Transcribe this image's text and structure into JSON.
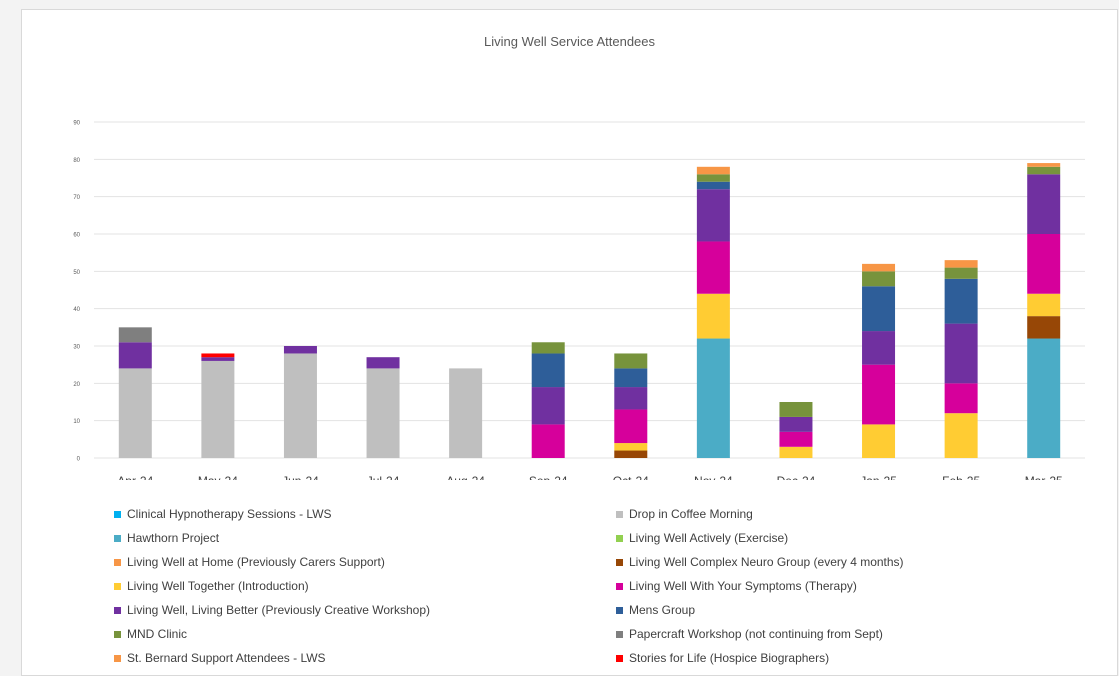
{
  "chart_data": {
    "type": "bar",
    "stacked": true,
    "title": "Living Well Service Attendees",
    "categories": [
      "Apr-24",
      "May-24",
      "Jun-24",
      "Jul-24",
      "Aug-24",
      "Sep-24",
      "Oct-24",
      "Nov-24",
      "Dec-24",
      "Jan-25",
      "Feb-25",
      "Mar-25"
    ],
    "y_ticks": [
      "0",
      "10",
      "20",
      "30",
      "40",
      "50",
      "60",
      "70",
      "80",
      "90"
    ],
    "ylim": [
      0,
      90
    ],
    "grid": true,
    "legend_position": "bottom",
    "series": [
      {
        "name": "Clinical Hypnotherapy Sessions - LWS",
        "color": "#00b0f0",
        "values": [
          0,
          0,
          0,
          0,
          0,
          0,
          0,
          0,
          0,
          0,
          0,
          0
        ]
      },
      {
        "name": "Drop in Coffee Morning",
        "color": "#bfbfbf",
        "values": [
          24,
          26,
          28,
          24,
          24,
          0,
          0,
          0,
          0,
          0,
          0,
          0
        ]
      },
      {
        "name": "Hawthorn Project",
        "color": "#4bacc6",
        "values": [
          0,
          0,
          0,
          0,
          0,
          0,
          0,
          32,
          0,
          0,
          0,
          32
        ]
      },
      {
        "name": "Living Well Actively (Exercise)",
        "color": "#92d050",
        "values": [
          0,
          0,
          0,
          0,
          0,
          0,
          0,
          0,
          0,
          0,
          0,
          0
        ]
      },
      {
        "name": "Living Well at Home (Previously Carers Support)",
        "color": "#f79646",
        "values": [
          0,
          0,
          0,
          0,
          0,
          0,
          0,
          0,
          0,
          0,
          0,
          0
        ]
      },
      {
        "name": "Living Well Complex Neuro Group (every 4 months)",
        "color": "#974706",
        "values": [
          0,
          0,
          0,
          0,
          0,
          0,
          2,
          0,
          0,
          0,
          0,
          6
        ]
      },
      {
        "name": "Living Well Together (Introduction)",
        "color": "#ffcc33",
        "values": [
          0,
          0,
          0,
          0,
          0,
          0,
          2,
          12,
          3,
          9,
          12,
          6
        ]
      },
      {
        "name": "Living Well With Your Symptoms (Therapy)",
        "color": "#d6009b",
        "values": [
          0,
          0,
          0,
          0,
          0,
          9,
          9,
          14,
          4,
          16,
          8,
          16
        ]
      },
      {
        "name": "Living Well, Living Better (Previously Creative Workshop)",
        "color": "#7030a0",
        "values": [
          7,
          1,
          2,
          3,
          0,
          10,
          6,
          14,
          4,
          9,
          16,
          16
        ]
      },
      {
        "name": "Mens Group",
        "color": "#2e5e99",
        "values": [
          0,
          0,
          0,
          0,
          0,
          9,
          5,
          2,
          0,
          12,
          12,
          0
        ]
      },
      {
        "name": "MND Clinic",
        "color": "#77933c",
        "values": [
          0,
          0,
          0,
          0,
          0,
          3,
          4,
          2,
          4,
          4,
          3,
          2
        ]
      },
      {
        "name": "Papercraft Workshop (not continuing from Sept)",
        "color": "#7f7f7f",
        "values": [
          4,
          0,
          0,
          0,
          0,
          0,
          0,
          0,
          0,
          0,
          0,
          0
        ]
      },
      {
        "name": "St. Bernard Support Attendees - LWS",
        "color": "#f79646",
        "values": [
          0,
          0,
          0,
          0,
          0,
          0,
          0,
          2,
          0,
          2,
          2,
          1
        ]
      },
      {
        "name": "Stories for Life (Hospice Biographers)",
        "color": "#ff0000",
        "values": [
          0,
          1,
          0,
          0,
          0,
          0,
          0,
          0,
          0,
          0,
          0,
          0
        ]
      }
    ]
  }
}
